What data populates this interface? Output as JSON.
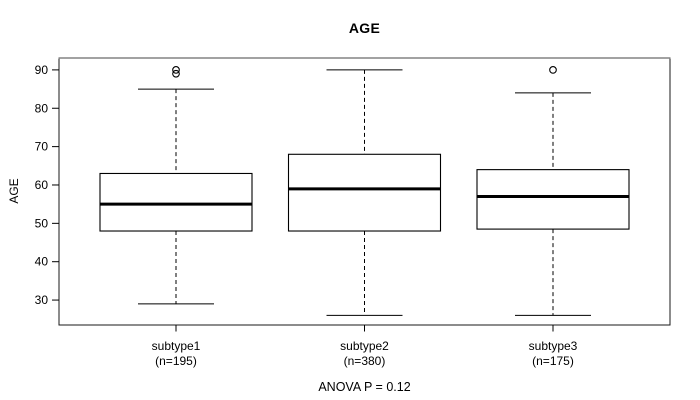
{
  "chart_data": {
    "type": "boxplot",
    "title": "AGE",
    "ylabel": "AGE",
    "xlabel": "",
    "footnote": "ANOVA P = 0.12",
    "yticks": [
      30,
      40,
      50,
      60,
      70,
      80,
      90
    ],
    "ylim": [
      23.5,
      93.1
    ],
    "grid": false,
    "groups": [
      {
        "label": "subtype1",
        "n_label": "(n=195)",
        "n": 195,
        "whisker_low": 29,
        "q1": 48,
        "median": 55,
        "q3": 63,
        "whisker_high": 85,
        "outliers": [
          89,
          90
        ]
      },
      {
        "label": "subtype2",
        "n_label": "(n=380)",
        "n": 380,
        "whisker_low": 26,
        "q1": 48,
        "median": 59,
        "q3": 68,
        "whisker_high": 90,
        "outliers": []
      },
      {
        "label": "subtype3",
        "n_label": "(n=175)",
        "n": 175,
        "whisker_low": 26,
        "q1": 48.5,
        "median": 57,
        "q3": 64,
        "whisker_high": 84,
        "outliers": [
          90
        ]
      }
    ]
  },
  "colors": {
    "background": "#ffffff",
    "line": "#000000",
    "frame_top": "#848484",
    "frame": "#1a1a1a",
    "text": "#000000"
  }
}
